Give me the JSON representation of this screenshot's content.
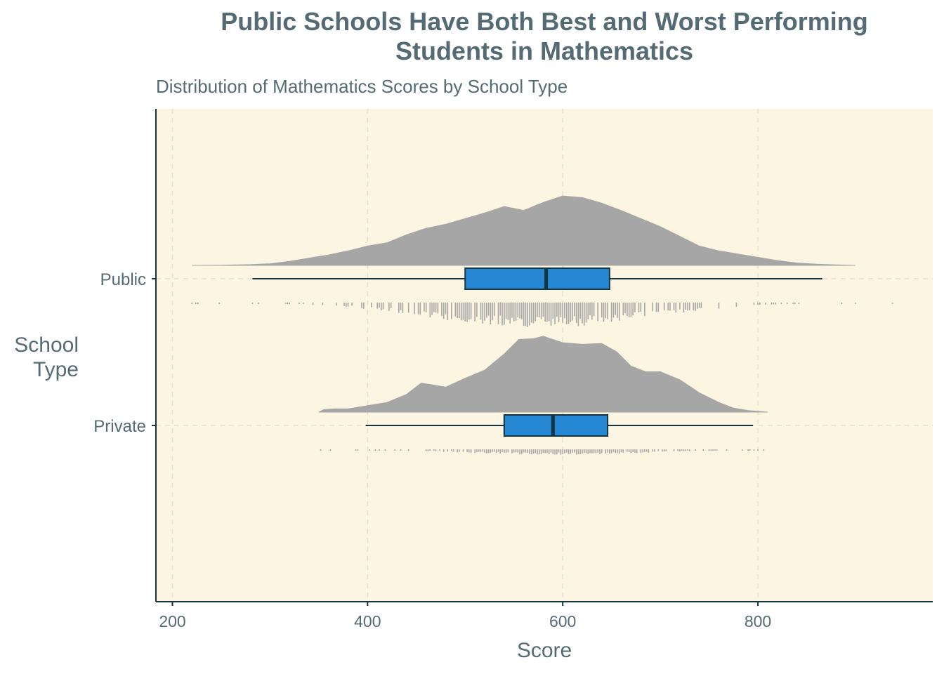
{
  "chart_data": {
    "type": "raincloud",
    "title": "Public Schools Have Both Best and Worst Performing\nStudents in Mathematics",
    "subtitle": "Distribution of Mathematics Scores by School Type",
    "xlabel": "Score",
    "ylabel": "School\nType",
    "xlim": [
      183,
      980
    ],
    "xticks": [
      200,
      400,
      600,
      800
    ],
    "grid": true,
    "legend": "none",
    "colors": {
      "panel": "#fcf5e2",
      "density": "#a6a6a6",
      "box": "#2688d4",
      "box_outline": "#14343f",
      "rug": "#a6a6a6",
      "text": "#556b73",
      "grid": "#e6dfcf"
    },
    "categories": [
      "Public",
      "Private"
    ],
    "series": [
      {
        "category": "Public",
        "box": {
          "min": 282,
          "q1": 500,
          "median": 583,
          "q3": 648,
          "max": 866
        },
        "range": [
          220,
          900
        ],
        "density": [
          [
            220,
            0.0
          ],
          [
            250,
            0.003
          ],
          [
            280,
            0.01
          ],
          [
            300,
            0.02
          ],
          [
            320,
            0.05
          ],
          [
            340,
            0.09
          ],
          [
            360,
            0.13
          ],
          [
            380,
            0.18
          ],
          [
            400,
            0.24
          ],
          [
            420,
            0.28
          ],
          [
            440,
            0.38
          ],
          [
            460,
            0.46
          ],
          [
            480,
            0.51
          ],
          [
            500,
            0.58
          ],
          [
            520,
            0.65
          ],
          [
            540,
            0.73
          ],
          [
            560,
            0.68
          ],
          [
            580,
            0.78
          ],
          [
            600,
            0.86
          ],
          [
            620,
            0.84
          ],
          [
            640,
            0.77
          ],
          [
            660,
            0.68
          ],
          [
            680,
            0.58
          ],
          [
            700,
            0.48
          ],
          [
            720,
            0.36
          ],
          [
            740,
            0.24
          ],
          [
            760,
            0.18
          ],
          [
            780,
            0.14
          ],
          [
            800,
            0.1
          ],
          [
            820,
            0.06
          ],
          [
            840,
            0.03
          ],
          [
            860,
            0.015
          ],
          [
            880,
            0.006
          ],
          [
            900,
            0.0
          ]
        ],
        "rug_range": [
          220,
          945
        ],
        "rug_center": 575,
        "rug_spread": 110
      },
      {
        "category": "Private",
        "box": {
          "min": 398,
          "q1": 540,
          "median": 590,
          "q3": 646,
          "max": 795
        },
        "range": [
          350,
          810
        ],
        "density": [
          [
            350,
            0.0
          ],
          [
            355,
            0.03
          ],
          [
            365,
            0.04
          ],
          [
            380,
            0.04
          ],
          [
            400,
            0.08
          ],
          [
            420,
            0.12
          ],
          [
            440,
            0.22
          ],
          [
            455,
            0.36
          ],
          [
            465,
            0.34
          ],
          [
            480,
            0.31
          ],
          [
            500,
            0.42
          ],
          [
            520,
            0.52
          ],
          [
            540,
            0.72
          ],
          [
            555,
            0.9
          ],
          [
            570,
            0.91
          ],
          [
            580,
            0.94
          ],
          [
            600,
            0.86
          ],
          [
            620,
            0.84
          ],
          [
            640,
            0.85
          ],
          [
            655,
            0.75
          ],
          [
            670,
            0.57
          ],
          [
            685,
            0.5
          ],
          [
            700,
            0.5
          ],
          [
            720,
            0.4
          ],
          [
            740,
            0.24
          ],
          [
            760,
            0.12
          ],
          [
            775,
            0.05
          ],
          [
            790,
            0.02
          ],
          [
            810,
            0.0
          ]
        ],
        "rug_range": [
          350,
          810
        ],
        "rug_center": 595,
        "rug_spread": 95
      }
    ]
  }
}
